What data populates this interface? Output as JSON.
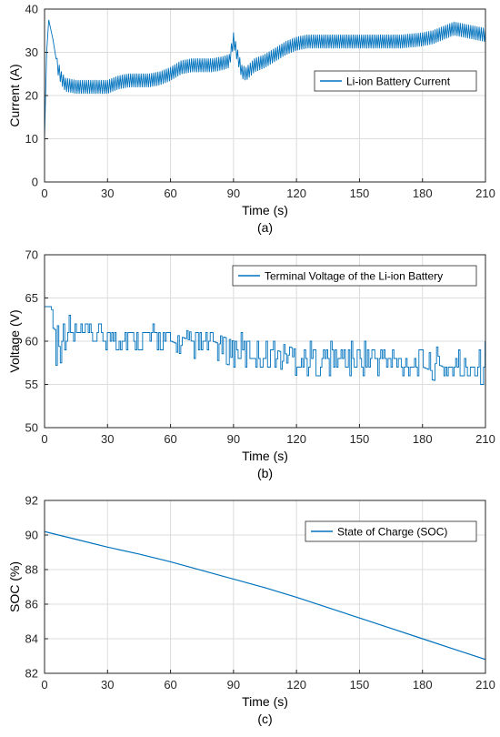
{
  "colors": {
    "series": "#0072BD",
    "grid": "#dcdcdc",
    "axis": "#262626"
  },
  "chart_data": [
    {
      "type": "line",
      "caption": "(a)",
      "xlabel": "Time (s)",
      "ylabel": "Current (A)",
      "xlim": [
        0,
        210
      ],
      "ylim": [
        0,
        40
      ],
      "xticks": [
        "0",
        "30",
        "60",
        "90",
        "120",
        "150",
        "180",
        "210"
      ],
      "yticks": [
        "0",
        "10",
        "20",
        "30",
        "40"
      ],
      "grid": true,
      "legend_position": "top-right",
      "series": [
        {
          "name": "Li-ion Battery Current",
          "style": "oscillating",
          "amplitude_note": "ripple of about ±1.5 A around the envelope",
          "envelope_x": [
            0,
            1,
            2,
            4,
            6,
            8,
            10,
            15,
            20,
            25,
            30,
            35,
            40,
            45,
            50,
            55,
            60,
            65,
            70,
            75,
            80,
            85,
            88,
            90,
            92,
            94,
            96,
            98,
            100,
            105,
            110,
            115,
            120,
            125,
            130,
            140,
            150,
            160,
            170,
            180,
            185,
            190,
            195,
            200,
            205,
            210
          ],
          "envelope_y": [
            10,
            30,
            37.5,
            33,
            27,
            24,
            22.5,
            22,
            22,
            22,
            22,
            23,
            23.5,
            23.5,
            23.5,
            24,
            25,
            26.5,
            27,
            27,
            27,
            27.5,
            28,
            33,
            29,
            25.5,
            25,
            26,
            27,
            28,
            29.5,
            31,
            32,
            32.5,
            32.5,
            32.5,
            32.5,
            32.5,
            32.5,
            33,
            33.5,
            34.5,
            35.5,
            35,
            34.5,
            34
          ]
        }
      ]
    },
    {
      "type": "line",
      "caption": "(b)",
      "xlabel": "Time (s)",
      "ylabel": "Voltage (V)",
      "xlim": [
        0,
        210
      ],
      "ylim": [
        50,
        70
      ],
      "xticks": [
        "0",
        "30",
        "60",
        "90",
        "120",
        "150",
        "180",
        "210"
      ],
      "yticks": [
        "50",
        "55",
        "60",
        "65",
        "70"
      ],
      "grid": true,
      "legend_position": "top-right",
      "series": [
        {
          "name": "Terminal Voltage of the Li-ion Battery",
          "style": "switching",
          "envelope_x": [
            0,
            3,
            5,
            6,
            7,
            8,
            10,
            20,
            30,
            40,
            50,
            60,
            70,
            80,
            90,
            100,
            110,
            120,
            130,
            140,
            150,
            160,
            170,
            180,
            190,
            200,
            208,
            210
          ],
          "envelope_low": [
            64,
            64,
            55,
            58,
            56,
            59,
            59,
            59,
            59,
            59,
            59,
            59,
            58,
            58,
            57,
            57,
            57,
            56,
            56,
            56,
            56,
            56,
            56,
            56,
            55,
            55,
            55,
            55
          ],
          "envelope_high": [
            64,
            64,
            64,
            64,
            62,
            62,
            63,
            62,
            62,
            62,
            62,
            61,
            61,
            61,
            61,
            60,
            60,
            60,
            60,
            60,
            60,
            60,
            59,
            59,
            59,
            59,
            61,
            61
          ]
        }
      ]
    },
    {
      "type": "line",
      "caption": "(c)",
      "xlabel": "Time (s)",
      "ylabel": "SOC (%)",
      "xlim": [
        0,
        210
      ],
      "ylim": [
        82,
        92
      ],
      "xticks": [
        "0",
        "30",
        "60",
        "90",
        "120",
        "150",
        "180",
        "210"
      ],
      "yticks": [
        "82",
        "84",
        "86",
        "88",
        "90",
        "92"
      ],
      "grid": true,
      "legend_position": "top-right",
      "series": [
        {
          "name": "State of Charge (SOC)",
          "style": "smooth",
          "x": [
            0,
            15,
            30,
            45,
            60,
            75,
            90,
            105,
            120,
            135,
            150,
            165,
            180,
            195,
            210
          ],
          "y": [
            90.2,
            89.75,
            89.3,
            88.9,
            88.45,
            87.95,
            87.45,
            86.95,
            86.4,
            85.8,
            85.2,
            84.6,
            84.0,
            83.4,
            82.8
          ]
        }
      ]
    }
  ]
}
